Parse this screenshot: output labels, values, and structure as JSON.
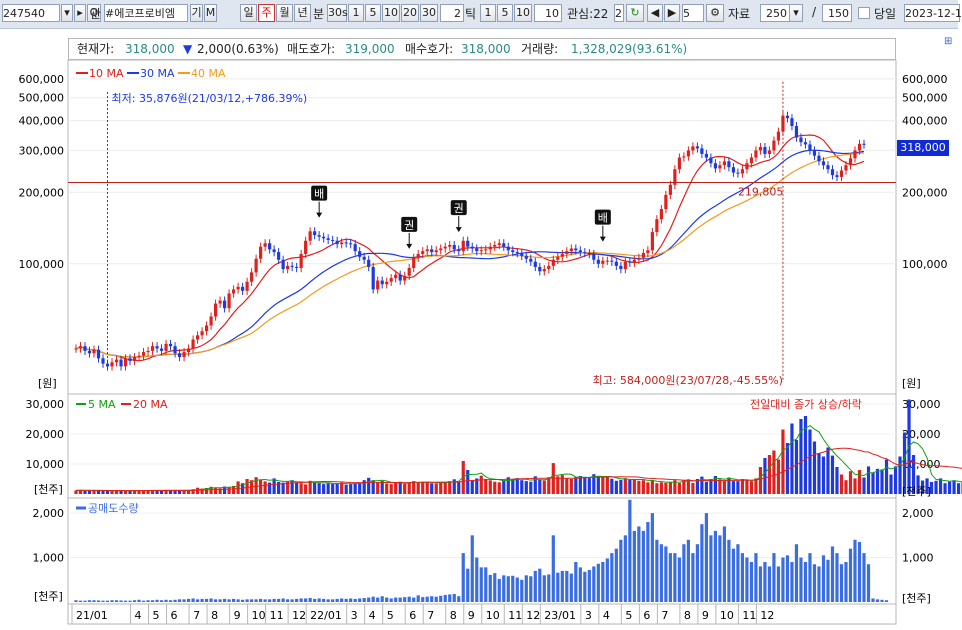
{
  "toolbar": {
    "code": "247540",
    "search_label": "Q",
    "kwan_label": "관",
    "stock_name": "#에코프로비엠",
    "gi_label": "기",
    "m_label": "M",
    "period_buttons": [
      "일",
      "주",
      "월",
      "년",
      "분"
    ],
    "selected_period": "주",
    "minute_buttons": [
      "30s",
      "1",
      "5",
      "10",
      "20",
      "30"
    ],
    "tick_input": "2",
    "tick_label": "틱",
    "tick_buttons": [
      "1",
      "5",
      "10"
    ],
    "tick_value": "10",
    "interest_label": "관심:22",
    "interest_value": "2",
    "step_value": "5",
    "data_label": "자료",
    "data_count": "250",
    "slash": "/",
    "total": "150",
    "today_label": "당일",
    "date": "2023-12-1"
  },
  "info": {
    "current_label": "현재가:",
    "current_value": "318,000",
    "change_arrow": "▼",
    "change_value": "2,000(0.63%)",
    "ask_label": "매도호가:",
    "ask_value": "319,000",
    "bid_label": "매수호가:",
    "bid_value": "318,000",
    "volume_label": "거래량:",
    "volume_value": "1,328,029(93.61%)"
  },
  "colors": {
    "up": "#e0201c",
    "down": "#1e3adf",
    "ma10": "#e0201c",
    "ma30": "#1e3adf",
    "ma40": "#f29b1c",
    "ma5": "#12a012",
    "ma20_vol": "#e0201c",
    "short": "#3a6de0"
  },
  "chart_data": [
    {
      "type": "candlestick",
      "title": "",
      "yscale": "log",
      "ylim": [
        30000,
        680000
      ],
      "yticks_left": [
        "600,000",
        "500,000",
        "400,000",
        "300,000",
        "200,000",
        "100,000"
      ],
      "yticks_right": [
        "600,000",
        "500,000",
        "400,000",
        "300,000",
        "200,000",
        "100,000"
      ],
      "y_unit": "[원]",
      "legend": [
        "10 MA",
        "30 MA",
        "40 MA"
      ],
      "x_ticks": [
        "21/01",
        "4",
        "5",
        "6",
        "7",
        "8",
        "9",
        "10",
        "11",
        "12",
        "22/01",
        "3",
        "4",
        "5",
        "6",
        "7",
        "8",
        "9",
        "10",
        "11",
        "12",
        "23/01",
        "3",
        "4",
        "5",
        "6",
        "7",
        "8",
        "9",
        "10",
        "11",
        "12"
      ],
      "ma_periods": [
        10,
        30,
        40
      ],
      "closes": [
        44000,
        45000,
        43000,
        42000,
        43500,
        40000,
        38000,
        37000,
        38500,
        39500,
        37000,
        40000,
        39000,
        40500,
        41000,
        42500,
        43000,
        45000,
        44000,
        43000,
        46000,
        45000,
        42000,
        40500,
        42500,
        44000,
        48000,
        50000,
        52000,
        55000,
        60000,
        68000,
        70000,
        65000,
        75000,
        78000,
        80000,
        77000,
        84000,
        92000,
        105000,
        118000,
        122000,
        115000,
        112000,
        104000,
        95000,
        98000,
        97000,
        96000,
        110000,
        125000,
        137000,
        132000,
        130000,
        128000,
        126000,
        125000,
        121000,
        123000,
        122000,
        121000,
        113000,
        107000,
        104000,
        97000,
        78000,
        85000,
        82000,
        84000,
        87000,
        90000,
        85000,
        89000,
        96000,
        106000,
        110000,
        113000,
        115000,
        112000,
        114000,
        116000,
        118000,
        120000,
        115000,
        113000,
        125000,
        118000,
        116000,
        113000,
        114000,
        115000,
        118000,
        120000,
        122000,
        118000,
        114000,
        112000,
        111000,
        108000,
        105000,
        102000,
        97000,
        93000,
        95000,
        98000,
        104000,
        107000,
        110000,
        113000,
        116000,
        114000,
        112000,
        111000,
        110000,
        104000,
        100000,
        103000,
        103000,
        102000,
        98000,
        95000,
        102000,
        101000,
        104000,
        106000,
        111000,
        114000,
        136000,
        154000,
        170000,
        195000,
        215000,
        250000,
        280000,
        283000,
        300000,
        312000,
        306000,
        290000,
        280000,
        265000,
        252000,
        260000,
        270000,
        255000,
        242000,
        240000,
        250000,
        265000,
        280000,
        300000,
        310000,
        290000,
        300000,
        330000,
        360000,
        420000,
        410000,
        380000,
        340000,
        325000,
        318000,
        300000,
        285000,
        270000,
        260000,
        250000,
        236000,
        232000,
        247000,
        260000,
        278000,
        300000,
        320000,
        318000
      ],
      "annotations": [
        {
          "text": "최저: 35,876원(21/03/12,+786.39%)",
          "value": 35876
        },
        {
          "text": "최고: 584,000원(23/07/28,-45.55%)",
          "value": 584000
        },
        {
          "text": "219,805",
          "value": 219805
        },
        {
          "text": "318,000",
          "value": 318000
        }
      ],
      "markers": [
        "배",
        "권",
        "권",
        "배"
      ]
    },
    {
      "type": "bar",
      "title": "전일대비 종가 상승/하락",
      "legend": [
        "5 MA",
        "20 MA"
      ],
      "y_unit": "[천주]",
      "ylim": [
        0,
        32000
      ],
      "yticks": [
        "30,000",
        "20,000",
        "10,000"
      ],
      "values": [
        1200,
        1300,
        1100,
        1200,
        1250,
        1150,
        1100,
        1000,
        1100,
        1200,
        1150,
        1050,
        1100,
        1200,
        1250,
        1100,
        1150,
        1300,
        1200,
        1250,
        1350,
        1300,
        1200,
        1150,
        1250,
        1300,
        1600,
        2100,
        1800,
        2000,
        2400,
        2200,
        1900,
        2500,
        2300,
        2700,
        4200,
        3600,
        5000,
        4600,
        5600,
        4800,
        4200,
        3800,
        5200,
        4000,
        3800,
        4200,
        4600,
        3900,
        3600,
        3200,
        4400,
        3900,
        3600,
        3300,
        3500,
        3400,
        3600,
        3800,
        3100,
        3300,
        3600,
        3800,
        4600,
        5400,
        4600,
        3900,
        4300,
        3500,
        3300,
        3700,
        4100,
        3400,
        3900,
        4300,
        3700,
        4100,
        3900,
        3600,
        3500,
        3800,
        4000,
        4300,
        4900,
        4200,
        11000,
        8000,
        4600,
        5200,
        6100,
        5000,
        4500,
        4100,
        3900,
        4600,
        5600,
        4800,
        5300,
        4600,
        4300,
        4100,
        5900,
        4900,
        4500,
        5600,
        10300,
        5900,
        6300,
        5300,
        5000,
        5600,
        6000,
        5700,
        5300,
        6600,
        6000,
        5800,
        5500,
        5100,
        4400,
        4700,
        5300,
        4800,
        5000,
        4400,
        4600,
        3900,
        4700,
        3600,
        3900,
        3700,
        3900,
        4600,
        3700,
        4700,
        4900,
        3700,
        5000,
        5800,
        4100,
        5000,
        6000,
        4900,
        4500,
        5500,
        4300,
        4300,
        5000,
        4600,
        4300,
        5200,
        9000,
        12000,
        13000,
        14500,
        11500,
        21500,
        17000,
        23500,
        18000,
        25000,
        26000,
        21500,
        17500,
        13500,
        12500,
        15500,
        12800,
        9000,
        6500,
        4600,
        7600,
        5200,
        8000,
        5500,
        9200,
        7200,
        8400,
        8200,
        11500,
        6500,
        9200,
        12500,
        20500,
        31500,
        13000,
        6200,
        4500,
        5200,
        4000,
        4400,
        5200,
        3600,
        4100,
        4600,
        3600,
        4000,
        3600,
        4600,
        5500,
        4500,
        12500,
        5600,
        6400,
        7400,
        5600,
        12000,
        6400,
        5800
      ]
    },
    {
      "type": "bar",
      "title": "",
      "legend": [
        "공매도수량"
      ],
      "y_unit": "[천주]",
      "ylim": [
        0,
        2250
      ],
      "yticks": [
        "2,000",
        "1,000"
      ],
      "values": [
        40,
        30,
        30,
        40,
        40,
        35,
        30,
        30,
        40,
        40,
        35,
        30,
        30,
        40,
        50,
        30,
        40,
        40,
        50,
        40,
        50,
        40,
        50,
        60,
        60,
        70,
        80,
        60,
        70,
        70,
        80,
        60,
        60,
        70,
        60,
        70,
        60,
        50,
        60,
        60,
        60,
        70,
        60,
        60,
        70,
        70,
        80,
        60,
        60,
        70,
        80,
        80,
        90,
        70,
        80,
        70,
        60,
        60,
        70,
        80,
        70,
        80,
        70,
        80,
        90,
        100,
        120,
        100,
        130,
        100,
        80,
        100,
        100,
        110,
        120,
        100,
        150,
        110,
        120,
        130,
        120,
        140,
        160,
        170,
        180,
        130,
        1100,
        750,
        1500,
        1000,
        780,
        780,
        610,
        650,
        520,
        600,
        580,
        590,
        550,
        500,
        600,
        580,
        700,
        750,
        600,
        620,
        1500,
        660,
        700,
        700,
        640,
        900,
        780,
        680,
        720,
        800,
        860,
        900,
        980,
        1100,
        1200,
        1400,
        1500,
        2300,
        1600,
        1700,
        1600,
        1800,
        2000,
        1400,
        1300,
        1250,
        1100,
        1100,
        1000,
        1300,
        1400,
        1100,
        1300,
        1750,
        2000,
        1500,
        1600,
        1500,
        1700,
        1400,
        1200,
        1300,
        1100,
        1000,
        900,
        1100,
        800,
        900,
        800,
        1100,
        800,
        1000,
        1050,
        900,
        1300,
        1000,
        900,
        1100,
        850,
        800,
        1050,
        950,
        1250,
        1100,
        850,
        900,
        1200,
        1400,
        1350,
        1100,
        850,
        80,
        60,
        50,
        40
      ]
    }
  ]
}
